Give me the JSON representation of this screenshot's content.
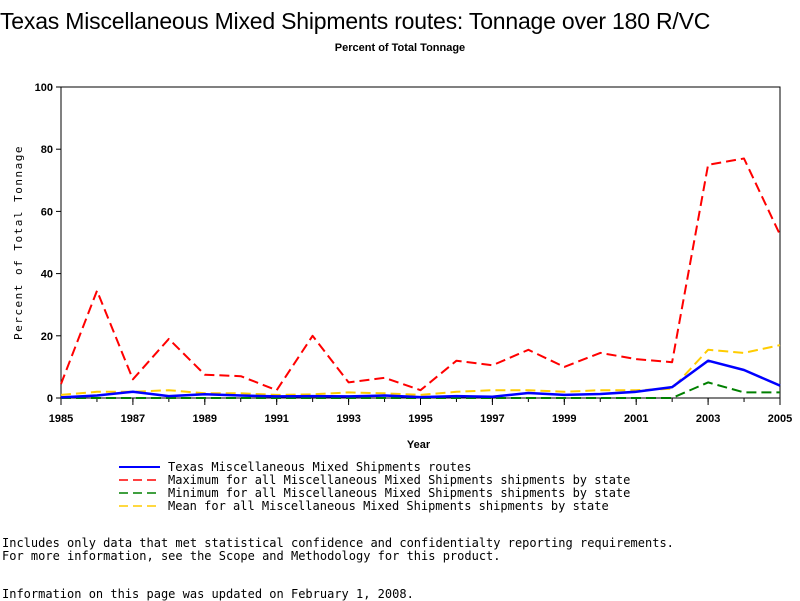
{
  "chart_data": {
    "type": "line",
    "title": "Texas Miscellaneous Mixed Shipments routes: Tonnage over 180 R/VC",
    "subtitle": "Percent of Total Tonnage",
    "xlabel": "Year",
    "ylabel": "Percent of Total Tonnage",
    "xlim": [
      1985,
      2005
    ],
    "ylim": [
      0,
      100
    ],
    "x_ticks": [
      1985,
      1987,
      1989,
      1991,
      1993,
      1995,
      1997,
      1999,
      2001,
      2003,
      2005
    ],
    "y_ticks": [
      0,
      20,
      40,
      60,
      80,
      100
    ],
    "grid": false,
    "legend_position": "bottom",
    "x": [
      1985,
      1986,
      1987,
      1988,
      1989,
      1990,
      1991,
      1992,
      1993,
      1994,
      1995,
      1996,
      1997,
      1998,
      1999,
      2000,
      2001,
      2002,
      2003,
      2004,
      2005
    ],
    "series": [
      {
        "name": "Texas Miscellaneous Mixed Shipments routes",
        "color": "#0000ff",
        "style": "solid",
        "values": [
          0.2,
          0.8,
          2.0,
          0.6,
          1.2,
          0.8,
          0.5,
          0.6,
          0.5,
          0.8,
          0.3,
          0.6,
          0.4,
          1.6,
          1.0,
          1.3,
          2.0,
          3.5,
          12.0,
          9.0,
          4.0
        ]
      },
      {
        "name": "Maximum for all Miscellaneous Mixed Shipments shipments by state",
        "color": "#ff0000",
        "style": "dashed",
        "values": [
          4.5,
          34.5,
          6.0,
          19.0,
          7.5,
          7.0,
          2.5,
          20.0,
          5.0,
          6.5,
          2.5,
          12.0,
          10.5,
          15.5,
          10.0,
          14.5,
          12.5,
          11.5,
          75.0,
          77.0,
          52.5
        ]
      },
      {
        "name": "Minimum for all Miscellaneous Mixed Shipments shipments by state",
        "color": "#008000",
        "style": "dashed",
        "values": [
          0.0,
          0.0,
          0.0,
          0.0,
          0.0,
          0.0,
          0.0,
          0.0,
          0.0,
          0.0,
          0.0,
          0.0,
          0.0,
          0.0,
          0.0,
          0.0,
          0.0,
          0.0,
          5.0,
          1.8,
          1.8
        ]
      },
      {
        "name": "Mean for all Miscellaneous Mixed Shipments shipments by state",
        "color": "#ffcc00",
        "style": "dashed",
        "values": [
          1.0,
          2.0,
          2.0,
          2.5,
          1.5,
          1.5,
          1.0,
          1.2,
          1.8,
          1.5,
          1.0,
          2.0,
          2.5,
          2.5,
          2.0,
          2.5,
          2.5,
          3.0,
          15.5,
          14.5,
          17.0
        ]
      }
    ]
  },
  "footnotes": {
    "line1": "Includes only data that met statistical confidence and confidentialty reporting requirements.",
    "line2": "For more information, see the Scope and Methodology for this product.",
    "line3": "Information on this page was updated on February 1, 2008."
  }
}
